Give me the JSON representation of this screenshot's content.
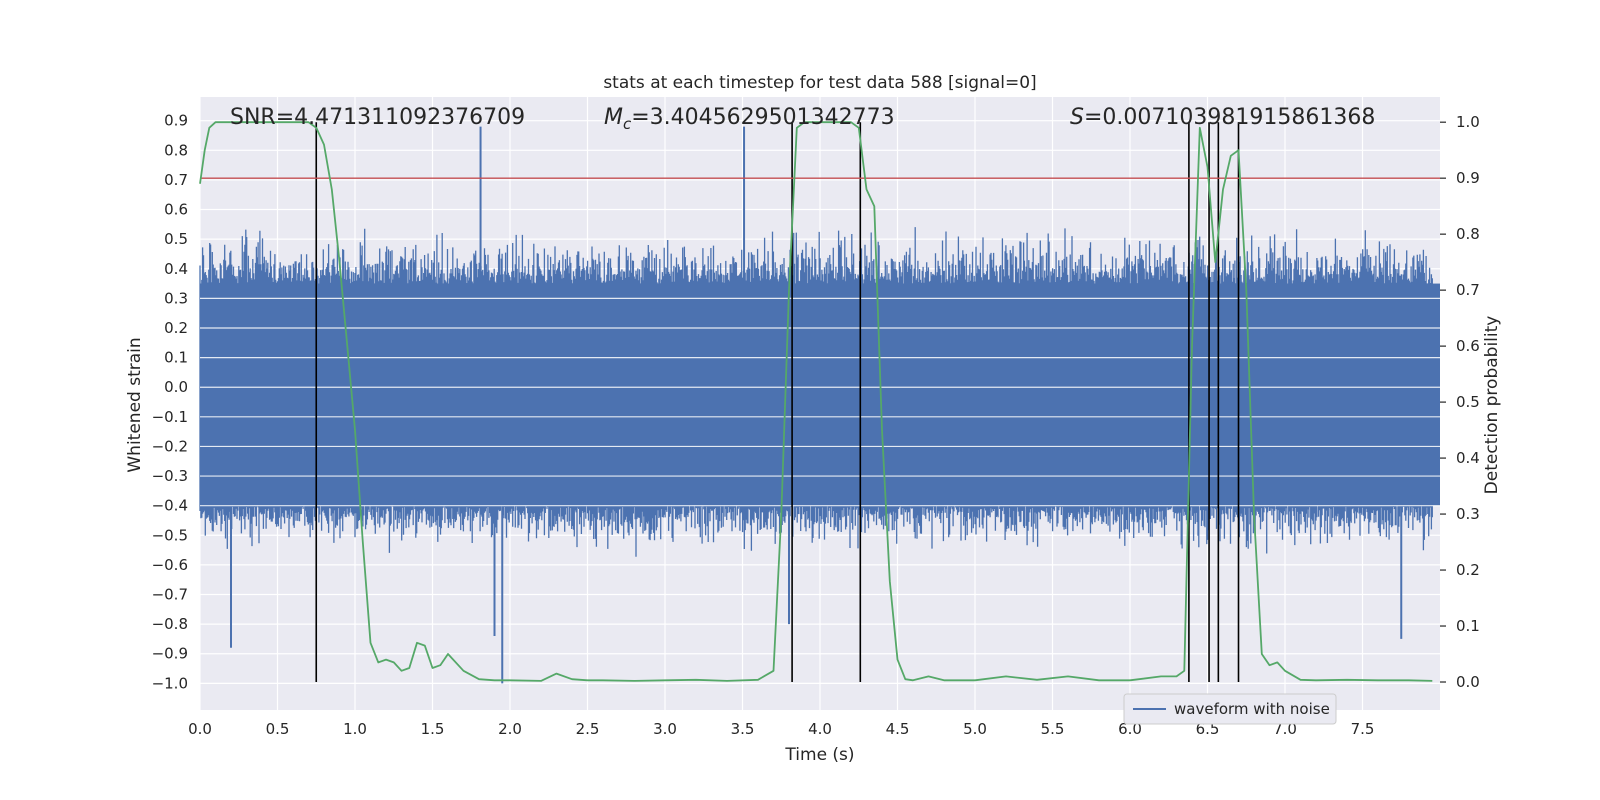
{
  "chart_data": {
    "type": "line",
    "title": "stats at each timestep for test data 588 [signal=0]",
    "xlabel": "Time (s)",
    "ylabel": "Whitened strain",
    "y2label": "Detection probability",
    "xlim": [
      0.0,
      8.0
    ],
    "ylim": [
      -1.09,
      0.98
    ],
    "y2lim": [
      -0.05,
      1.045
    ],
    "xticks": [
      0.0,
      0.5,
      1.0,
      1.5,
      2.0,
      2.5,
      3.0,
      3.5,
      4.0,
      4.5,
      5.0,
      5.5,
      6.0,
      6.5,
      7.0,
      7.5
    ],
    "xtick_labels": [
      "0.0",
      "0.5",
      "1.0",
      "1.5",
      "2.0",
      "2.5",
      "3.0",
      "3.5",
      "4.0",
      "4.5",
      "5.0",
      "5.5",
      "6.0",
      "6.5",
      "7.0",
      "7.5"
    ],
    "yticks": [
      0.9,
      0.8,
      0.7,
      0.6,
      0.5,
      0.4,
      0.3,
      0.2,
      0.1,
      0.0,
      -0.1,
      -0.2,
      -0.3,
      -0.4,
      -0.5,
      -0.6,
      -0.7,
      -0.8,
      -0.9,
      -1.0
    ],
    "ytick_labels": [
      "0.9",
      "0.8",
      "0.7",
      "0.6",
      "0.5",
      "0.4",
      "0.3",
      "0.2",
      "0.1",
      "0.0",
      "−0.1",
      "−0.2",
      "−0.3",
      "−0.4",
      "−0.5",
      "−0.6",
      "−0.7",
      "−0.8",
      "−0.9",
      "−1.0"
    ],
    "y2ticks": [
      1.0,
      0.9,
      0.8,
      0.7,
      0.6,
      0.5,
      0.4,
      0.3,
      0.2,
      0.1,
      0.0
    ],
    "y2tick_labels": [
      "1.0",
      "0.9",
      "0.8",
      "0.7",
      "0.6",
      "0.5",
      "0.4",
      "0.3",
      "0.2",
      "0.1",
      "0.0"
    ],
    "annotations": {
      "snr": "SNR=4.471311092376709",
      "mc_symbol": "M",
      "mc_sub": "c",
      "mc_value": "=3.4045629501342773",
      "s_symbol": "S",
      "s_value": "=0.007103981915861368"
    },
    "legend": {
      "label": "waveform with noise",
      "placement": "lower-right"
    },
    "threshold": {
      "value": 0.9,
      "axis": "right",
      "color": "#c44e52"
    },
    "detection_boundaries": [
      0.75,
      3.82,
      4.26,
      6.38,
      6.51,
      6.57,
      6.7
    ],
    "strain_series": {
      "name": "waveform with noise",
      "color": "#4c72b0",
      "seed": 588,
      "samples": 1400,
      "base_low": -0.4,
      "base_high": 0.35,
      "spikes": [
        {
          "x": 1.81,
          "y": 0.88
        },
        {
          "x": 3.51,
          "y": 0.88
        },
        {
          "x": 1.95,
          "y": -1.0
        },
        {
          "x": 0.2,
          "y": -0.88
        },
        {
          "x": 7.75,
          "y": -0.85
        },
        {
          "x": 3.8,
          "y": -0.8
        },
        {
          "x": 1.9,
          "y": -0.84
        }
      ]
    },
    "probability_series": {
      "name": "detection probability",
      "color": "#55a868",
      "x": [
        0.0,
        0.03,
        0.06,
        0.1,
        0.2,
        0.3,
        0.4,
        0.5,
        0.6,
        0.7,
        0.75,
        0.8,
        0.85,
        0.9,
        0.95,
        1.0,
        1.05,
        1.1,
        1.15,
        1.2,
        1.25,
        1.3,
        1.35,
        1.4,
        1.45,
        1.5,
        1.55,
        1.6,
        1.7,
        1.8,
        1.9,
        2.0,
        2.2,
        2.3,
        2.4,
        2.5,
        2.6,
        2.8,
        3.0,
        3.2,
        3.4,
        3.6,
        3.7,
        3.75,
        3.8,
        3.85,
        3.9,
        4.0,
        4.1,
        4.2,
        4.25,
        4.3,
        4.35,
        4.4,
        4.45,
        4.5,
        4.55,
        4.6,
        4.7,
        4.8,
        5.0,
        5.2,
        5.4,
        5.6,
        5.8,
        6.0,
        6.2,
        6.3,
        6.35,
        6.4,
        6.45,
        6.5,
        6.55,
        6.6,
        6.65,
        6.7,
        6.75,
        6.8,
        6.85,
        6.9,
        6.95,
        7.0,
        7.1,
        7.2,
        7.4,
        7.6,
        7.8,
        7.95
      ],
      "y": [
        0.89,
        0.95,
        0.99,
        1.0,
        1.0,
        1.0,
        1.0,
        1.0,
        1.0,
        1.0,
        0.99,
        0.96,
        0.88,
        0.75,
        0.6,
        0.45,
        0.25,
        0.07,
        0.035,
        0.04,
        0.035,
        0.02,
        0.025,
        0.07,
        0.065,
        0.025,
        0.03,
        0.05,
        0.02,
        0.005,
        0.003,
        0.003,
        0.002,
        0.015,
        0.005,
        0.003,
        0.003,
        0.002,
        0.003,
        0.004,
        0.002,
        0.004,
        0.02,
        0.3,
        0.7,
        0.99,
        1.0,
        1.0,
        1.0,
        1.0,
        0.99,
        0.88,
        0.85,
        0.45,
        0.18,
        0.04,
        0.005,
        0.003,
        0.01,
        0.003,
        0.003,
        0.01,
        0.004,
        0.01,
        0.003,
        0.003,
        0.01,
        0.01,
        0.02,
        0.6,
        0.99,
        0.92,
        0.75,
        0.88,
        0.94,
        0.95,
        0.7,
        0.3,
        0.05,
        0.03,
        0.035,
        0.02,
        0.004,
        0.003,
        0.004,
        0.003,
        0.003,
        0.002
      ]
    }
  }
}
